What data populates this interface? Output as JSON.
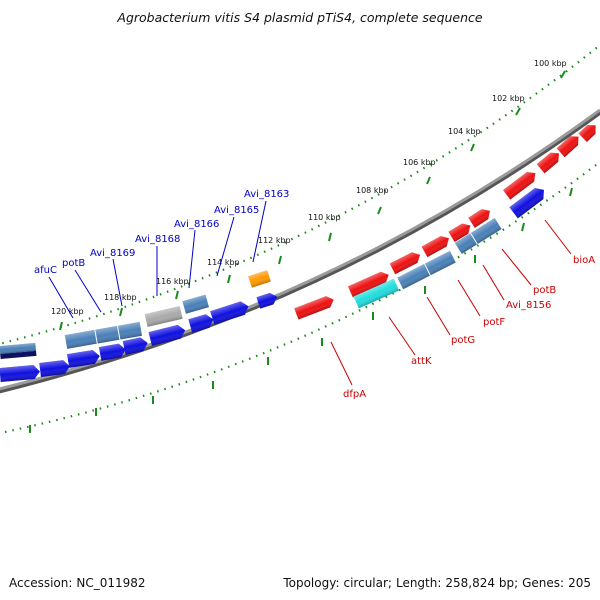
{
  "title": "Agrobacterium vitis S4 plasmid pTiS4, complete sequence",
  "footer": {
    "accession_label": "Accession:",
    "accession": "NC_011982",
    "topology_label": "Topology:",
    "topology": "circular;",
    "length_label": "Length:",
    "length": "258,824 bp;",
    "genes_label": "Genes:",
    "genes": "205"
  },
  "colors": {
    "backbone": "#888888",
    "ticks": "#1a8a1a",
    "label_outer": "#0000c8",
    "label_inner": "#cc0000",
    "gene_blue": "#1010e0",
    "gene_steel": "#4a80b8",
    "gene_red": "#ee1111",
    "gene_cyan": "#22dddd",
    "gene_gray": "#aaaaaa",
    "gene_orange": "#ff9900",
    "gene_navy": "#101060"
  },
  "chart_data": {
    "type": "circular_genome_map",
    "title": "Agrobacterium vitis S4 plasmid pTiS4, complete sequence",
    "tick_labels": [
      {
        "kbp": 100,
        "label": "100 kbp"
      },
      {
        "kbp": 102,
        "label": "102 kbp"
      },
      {
        "kbp": 104,
        "label": "104 kbp"
      },
      {
        "kbp": 106,
        "label": "106 kbp"
      },
      {
        "kbp": 108,
        "label": "108 kbp"
      },
      {
        "kbp": 110,
        "label": "110 kbp"
      },
      {
        "kbp": 112,
        "label": "112 kbp"
      },
      {
        "kbp": 114,
        "label": "114 kbp"
      },
      {
        "kbp": 116,
        "label": "116 kbp"
      },
      {
        "kbp": 118,
        "label": "118 kbp"
      },
      {
        "kbp": 120,
        "label": "120 kbp"
      }
    ],
    "outer_labels": [
      {
        "name": "afuC",
        "kbp": 120.8
      },
      {
        "name": "potB",
        "kbp": 119.5
      },
      {
        "name": "Avi_8169",
        "kbp": 118.4
      },
      {
        "name": "Avi_8168",
        "kbp": 116.4
      },
      {
        "name": "Avi_8166",
        "kbp": 114.9
      },
      {
        "name": "Avi_8165",
        "kbp": 114.0
      },
      {
        "name": "Avi_8163",
        "kbp": 113.0
      }
    ],
    "inner_labels": [
      {
        "name": "dfpA",
        "kbp": 110.1
      },
      {
        "name": "attK",
        "kbp": 108.2
      },
      {
        "name": "potG",
        "kbp": 107.0
      },
      {
        "name": "potF",
        "kbp": 105.9
      },
      {
        "name": "Avi_8156",
        "kbp": 105.1
      },
      {
        "name": "potB",
        "kbp": 104.3
      },
      {
        "name": "bioA",
        "kbp": 103.2
      }
    ]
  }
}
